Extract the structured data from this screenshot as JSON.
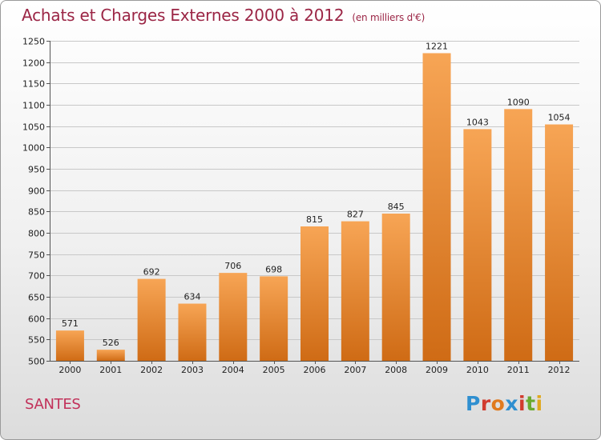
{
  "header": {
    "title": "Achats et Charges Externes 2000 à 2012",
    "subtitle": "(en milliers d'€)"
  },
  "footer": {
    "city": "SANTES",
    "logo_letters": [
      {
        "ch": "P",
        "color": "#2f8fd0"
      },
      {
        "ch": "r",
        "color": "#d13b2e"
      },
      {
        "ch": "o",
        "color": "#e07a1e"
      },
      {
        "ch": "x",
        "color": "#2f8fd0"
      },
      {
        "ch": "i",
        "color": "#d13b2e"
      },
      {
        "ch": "t",
        "color": "#6aaa2e"
      },
      {
        "ch": "i",
        "color": "#e0a81e"
      }
    ]
  },
  "colors": {
    "bar_top": "#f7a555",
    "bar_bottom": "#cf6b15",
    "title": "#9b2545",
    "grid": "#c8c8c8"
  },
  "chart_data": {
    "type": "bar",
    "title": "Achats et Charges Externes 2000 à 2012",
    "subtitle": "(en milliers d'€)",
    "categories": [
      "2000",
      "2001",
      "2002",
      "2003",
      "2004",
      "2005",
      "2006",
      "2007",
      "2008",
      "2009",
      "2010",
      "2011",
      "2012"
    ],
    "values": [
      571,
      526,
      692,
      634,
      706,
      698,
      815,
      827,
      845,
      1221,
      1043,
      1090,
      1054
    ],
    "ylim": [
      500,
      1250
    ],
    "yticks": [
      500,
      550,
      600,
      650,
      700,
      750,
      800,
      850,
      900,
      950,
      1000,
      1050,
      1100,
      1150,
      1200,
      1250
    ],
    "grid": true,
    "data_labels": true
  }
}
